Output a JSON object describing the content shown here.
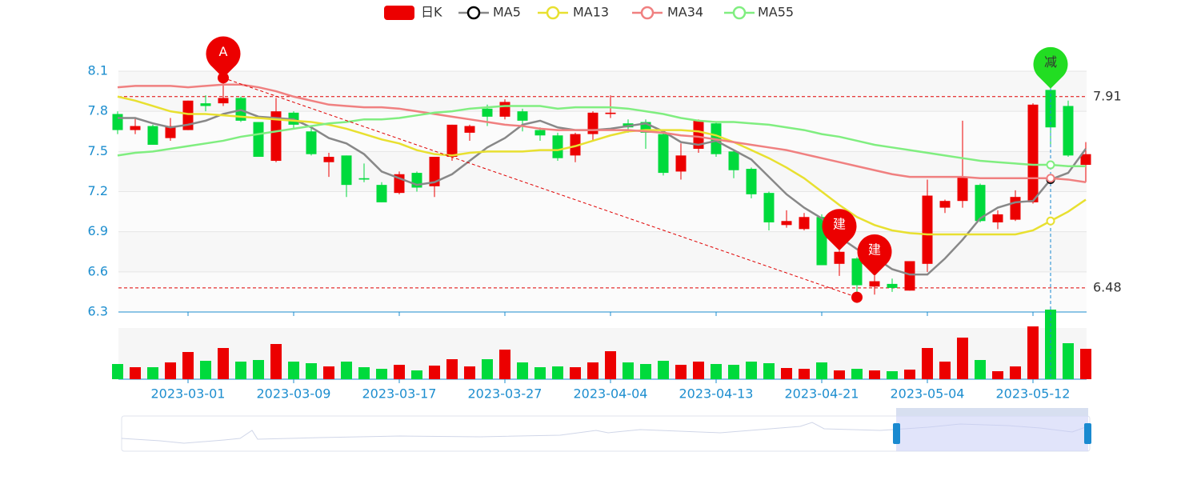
{
  "chart_data": {
    "type": "candlestick",
    "categories": [
      null,
      null,
      null,
      null,
      "2023-03-01",
      null,
      null,
      null,
      null,
      null,
      "2023-03-09",
      null,
      null,
      null,
      null,
      null,
      "2023-03-17",
      null,
      null,
      null,
      null,
      null,
      "2023-03-27",
      null,
      null,
      null,
      null,
      null,
      "2023-04-04",
      null,
      null,
      null,
      null,
      null,
      "2023-04-13",
      null,
      null,
      null,
      null,
      null,
      "2023-04-21",
      null,
      null,
      null,
      null,
      null,
      "2023-05-04",
      null,
      null,
      null,
      null,
      null,
      "2023-05-12",
      null,
      null,
      null
    ],
    "ylim": [
      6.3,
      8.1
    ],
    "yticks": [
      6.3,
      6.6,
      6.9,
      7.2,
      7.5,
      7.8,
      8.1
    ],
    "grid": true,
    "series": [
      {
        "name": "日K",
        "type": "candlestick",
        "color": "#ec0000",
        "down_color": "#00da3c",
        "open": [
          7.78,
          7.66,
          7.69,
          7.6,
          7.66,
          7.86,
          7.86,
          7.9,
          7.72,
          7.43,
          7.79,
          7.65,
          7.42,
          7.47,
          7.3,
          7.25,
          7.19,
          7.34,
          7.24,
          7.46,
          7.64,
          7.82,
          7.76,
          7.8,
          7.66,
          7.62,
          7.47,
          7.63,
          7.78,
          7.71,
          7.72,
          7.63,
          7.35,
          7.52,
          7.71,
          7.5,
          7.37,
          7.19,
          6.95,
          6.92,
          7.01,
          6.66,
          6.7,
          6.49,
          6.51,
          6.46,
          6.66,
          7.08,
          7.13,
          7.25,
          6.97,
          6.99,
          7.12,
          7.96,
          7.84,
          7.4
        ],
        "close": [
          7.66,
          7.69,
          7.55,
          7.69,
          7.88,
          7.84,
          7.9,
          7.73,
          7.46,
          7.8,
          7.7,
          7.48,
          7.46,
          7.25,
          7.29,
          7.12,
          7.33,
          7.23,
          7.46,
          7.7,
          7.69,
          7.76,
          7.87,
          7.73,
          7.62,
          7.45,
          7.63,
          7.79,
          7.79,
          7.68,
          7.64,
          7.34,
          7.47,
          7.73,
          7.48,
          7.36,
          7.18,
          6.97,
          6.98,
          7.01,
          6.65,
          6.75,
          6.5,
          6.53,
          6.48,
          6.68,
          7.17,
          7.13,
          7.31,
          6.98,
          7.03,
          7.16,
          7.85,
          7.68,
          7.47,
          7.48
        ],
        "high": [
          7.8,
          7.75,
          7.7,
          7.75,
          7.88,
          7.92,
          8.05,
          7.91,
          7.72,
          7.9,
          7.8,
          7.68,
          7.49,
          7.47,
          7.41,
          7.27,
          7.35,
          7.35,
          7.46,
          7.7,
          7.7,
          7.85,
          7.89,
          7.82,
          7.68,
          7.64,
          7.64,
          7.8,
          7.92,
          7.74,
          7.74,
          7.64,
          7.56,
          7.74,
          7.72,
          7.51,
          7.38,
          7.2,
          7.06,
          7.04,
          7.03,
          6.76,
          6.71,
          6.57,
          6.55,
          6.68,
          7.29,
          7.14,
          7.73,
          7.26,
          7.06,
          7.21,
          7.86,
          7.97,
          7.88,
          7.57
        ],
        "low": [
          7.63,
          7.63,
          7.55,
          7.58,
          7.66,
          7.8,
          7.84,
          7.72,
          7.46,
          7.42,
          7.67,
          7.47,
          7.31,
          7.16,
          7.27,
          7.12,
          7.18,
          7.2,
          7.16,
          7.43,
          7.58,
          7.69,
          7.74,
          7.65,
          7.58,
          7.43,
          7.42,
          7.58,
          7.75,
          7.64,
          7.52,
          7.32,
          7.29,
          7.49,
          7.46,
          7.3,
          7.15,
          6.91,
          6.93,
          6.91,
          6.65,
          6.57,
          6.41,
          6.43,
          6.45,
          6.46,
          6.6,
          7.04,
          7.08,
          6.97,
          6.92,
          6.98,
          7.11,
          7.54,
          7.46,
          7.27
        ]
      },
      {
        "name": "MA5",
        "type": "line",
        "color": "#888888",
        "values": [
          7.75,
          7.75,
          7.71,
          7.68,
          7.7,
          7.73,
          7.78,
          7.81,
          7.76,
          7.75,
          7.74,
          7.68,
          7.6,
          7.56,
          7.48,
          7.35,
          7.3,
          7.25,
          7.27,
          7.33,
          7.43,
          7.53,
          7.6,
          7.7,
          7.73,
          7.68,
          7.66,
          7.66,
          7.67,
          7.69,
          7.71,
          7.65,
          7.57,
          7.55,
          7.58,
          7.51,
          7.44,
          7.31,
          7.18,
          7.08,
          7.0,
          6.86,
          6.77,
          6.71,
          6.62,
          6.58,
          6.58,
          6.7,
          6.84,
          7.0,
          7.08,
          7.12,
          7.13,
          7.29,
          7.34,
          7.52
        ]
      },
      {
        "name": "MA13",
        "type": "line",
        "color": "#e8e030",
        "values": [
          7.91,
          7.88,
          7.84,
          7.8,
          7.78,
          7.78,
          7.77,
          7.76,
          7.75,
          7.74,
          7.73,
          7.72,
          7.7,
          7.67,
          7.63,
          7.59,
          7.56,
          7.51,
          7.48,
          7.47,
          7.49,
          7.5,
          7.5,
          7.5,
          7.51,
          7.51,
          7.54,
          7.58,
          7.62,
          7.65,
          7.66,
          7.66,
          7.66,
          7.65,
          7.62,
          7.57,
          7.51,
          7.45,
          7.38,
          7.3,
          7.2,
          7.1,
          7.01,
          6.95,
          6.91,
          6.89,
          6.88,
          6.88,
          6.88,
          6.88,
          6.88,
          6.88,
          6.91,
          6.98,
          7.05,
          7.14
        ]
      },
      {
        "name": "MA34",
        "type": "line",
        "color": "#f08080",
        "values": [
          7.98,
          7.99,
          7.99,
          7.99,
          7.98,
          7.99,
          8.0,
          8.0,
          7.98,
          7.95,
          7.91,
          7.88,
          7.85,
          7.84,
          7.83,
          7.83,
          7.82,
          7.8,
          7.78,
          7.76,
          7.74,
          7.72,
          7.7,
          7.69,
          7.67,
          7.66,
          7.66,
          7.66,
          7.66,
          7.66,
          7.65,
          7.64,
          7.62,
          7.61,
          7.59,
          7.57,
          7.55,
          7.53,
          7.51,
          7.48,
          7.45,
          7.42,
          7.39,
          7.36,
          7.33,
          7.31,
          7.31,
          7.31,
          7.31,
          7.3,
          7.3,
          7.3,
          7.3,
          7.3,
          7.29,
          7.27
        ]
      },
      {
        "name": "MA55",
        "type": "line",
        "color": "#80ee80",
        "values": [
          7.47,
          7.49,
          7.5,
          7.52,
          7.54,
          7.56,
          7.58,
          7.61,
          7.63,
          7.65,
          7.67,
          7.69,
          7.71,
          7.72,
          7.74,
          7.74,
          7.75,
          7.77,
          7.79,
          7.8,
          7.82,
          7.83,
          7.84,
          7.84,
          7.84,
          7.82,
          7.83,
          7.83,
          7.83,
          7.82,
          7.8,
          7.78,
          7.75,
          7.73,
          7.72,
          7.72,
          7.71,
          7.7,
          7.68,
          7.66,
          7.63,
          7.61,
          7.58,
          7.55,
          7.53,
          7.51,
          7.49,
          7.47,
          7.45,
          7.43,
          7.42,
          7.41,
          7.4,
          7.4,
          7.39,
          7.39
        ]
      }
    ],
    "volume": {
      "values": [
        19,
        15,
        15,
        21,
        34,
        23,
        39,
        22,
        24,
        44,
        22,
        20,
        16,
        22,
        15,
        13,
        18,
        11,
        17,
        25,
        16,
        25,
        37,
        21,
        15,
        16,
        15,
        21,
        35,
        21,
        19,
        23,
        18,
        22,
        19,
        18,
        22,
        20,
        14,
        13,
        21,
        11,
        13,
        11,
        10,
        12,
        39,
        22,
        52,
        24,
        10,
        16,
        66,
        87,
        45,
        38
      ]
    },
    "mark_lines": [
      7.91,
      6.48
    ],
    "annotations": [
      {
        "label": "A",
        "index": 6,
        "value": 8.05,
        "color": "#ec0000"
      },
      {
        "label": "建",
        "index": 41,
        "value": 6.76,
        "color": "#ec0000"
      },
      {
        "label": "建",
        "index": 43,
        "value": 6.57,
        "color": "#ec0000"
      },
      {
        "label": "减",
        "index": 53,
        "value": 7.97,
        "color": "#22dd22"
      }
    ],
    "trend_line": {
      "from": {
        "index": 6,
        "value": 8.05
      },
      "to": {
        "index": 42,
        "value": 6.41
      }
    },
    "crosshair_index": 53
  }
}
